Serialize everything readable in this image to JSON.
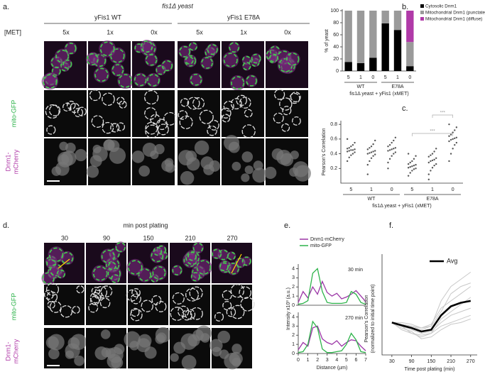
{
  "figure": {
    "panel_a": {
      "letter": "a.",
      "strain": "fis1Δ yeast",
      "wt": "yFis1 WT",
      "mut": "yFis1 E78A",
      "met": "[MET]",
      "doses": [
        "5x",
        "1x",
        "0x",
        "5x",
        "1x",
        "0x"
      ],
      "row_gfp": "mito-GFP",
      "row_cherry": [
        "Dnm1-",
        "mCherry"
      ]
    },
    "panel_d": {
      "letter": "d.",
      "title": "min post plating",
      "times": [
        "30",
        "90",
        "150",
        "210",
        "270"
      ],
      "row_gfp": "mito-GFP",
      "row_cherry": [
        "Dnm1-",
        "mCherry"
      ]
    },
    "letters": {
      "b": "b.",
      "c": "c.",
      "e": "e.",
      "f": "f."
    }
  },
  "chart_data": [
    {
      "type": "bar",
      "stacked": true,
      "ylabel": "% of yeast",
      "xlabel": "fis1Δ yeast + yFis1 (xMET)",
      "categories": [
        "5",
        "1",
        "0",
        "5",
        "1",
        "0"
      ],
      "groups": [
        "WT",
        "E78A"
      ],
      "ylim": [
        0,
        100
      ],
      "yticks": [
        0,
        20,
        40,
        60,
        80,
        100
      ],
      "series": [
        {
          "name": "Cytosolic Dnm1",
          "color": "#000000",
          "values": [
            15,
            13,
            22,
            79,
            68,
            8
          ]
        },
        {
          "name": "Mitochondrial Dnm1 (punctate)",
          "color": "#9a9a9a",
          "values": [
            85,
            87,
            78,
            21,
            32,
            40
          ]
        },
        {
          "name": "Mitochondrial Dnm1 (diffuse)",
          "color": "#b03aa8",
          "values": [
            0,
            0,
            0,
            0,
            0,
            52
          ]
        }
      ]
    },
    {
      "type": "scatter",
      "ylabel": "Pearson's Correlation",
      "xlabel": "fis1Δ yeast + yFis1 (xMET)",
      "categories": [
        "5",
        "1",
        "0",
        "5",
        "1",
        "0"
      ],
      "groups": [
        "WT",
        "E78A"
      ],
      "ylim": [
        0,
        0.85
      ],
      "yticks": [
        0.2,
        0.4,
        0.6,
        0.8
      ],
      "color": "#555555",
      "annotations": [
        "***",
        "***"
      ],
      "values": [
        [
          0.3,
          0.35,
          0.38,
          0.4,
          0.42,
          0.43,
          0.44,
          0.45,
          0.45,
          0.46,
          0.47,
          0.48,
          0.5,
          0.52,
          0.55,
          0.6
        ],
        [
          0.25,
          0.3,
          0.34,
          0.37,
          0.39,
          0.4,
          0.41,
          0.42,
          0.43,
          0.44,
          0.46,
          0.48,
          0.5,
          0.53,
          0.58,
          0.12
        ],
        [
          0.28,
          0.33,
          0.37,
          0.4,
          0.42,
          0.44,
          0.45,
          0.46,
          0.47,
          0.48,
          0.5,
          0.52,
          0.55,
          0.58,
          0.62,
          0.2
        ],
        [
          0.1,
          0.14,
          0.17,
          0.19,
          0.2,
          0.21,
          0.22,
          0.23,
          0.24,
          0.25,
          0.26,
          0.28,
          0.3,
          0.33,
          0.37,
          0.4
        ],
        [
          0.12,
          0.17,
          0.21,
          0.24,
          0.26,
          0.28,
          0.3,
          0.31,
          0.32,
          0.34,
          0.36,
          0.38,
          0.4,
          0.43,
          0.47,
          0.05
        ],
        [
          0.3,
          0.4,
          0.47,
          0.52,
          0.55,
          0.57,
          0.59,
          0.6,
          0.61,
          0.62,
          0.64,
          0.66,
          0.69,
          0.72,
          0.76,
          0.8
        ]
      ]
    },
    {
      "type": "line",
      "ylabel": "Intensity x10³ (a.u.)",
      "xlabel": "Distance (µm)",
      "xlim": [
        0,
        7
      ],
      "xticks": [
        0,
        1,
        2,
        3,
        4,
        5,
        6,
        7
      ],
      "ylim": [
        0,
        4.5
      ],
      "yticks": [
        0,
        1,
        2,
        3,
        4
      ],
      "x": [
        0,
        0.5,
        1,
        1.5,
        2,
        2.5,
        3,
        3.5,
        4,
        4.5,
        5,
        5.5,
        6,
        6.5,
        7
      ],
      "series": [
        {
          "name": "Dnm1-mCherry",
          "color": "#9b35a6"
        },
        {
          "name": "mito-GFP",
          "color": "#2db34a"
        }
      ],
      "panels": [
        {
          "label": "30 min",
          "values": [
            [
              0.3,
              1.5,
              0.8,
              2.0,
              1.2,
              2.6,
              1.4,
              1.0,
              1.3,
              0.7,
              0.9,
              1.2,
              1.6,
              1.0,
              0.4
            ],
            [
              0.1,
              0.2,
              0.5,
              3.5,
              4.0,
              1.5,
              0.3,
              0.2,
              0.2,
              0.2,
              0.3,
              1.5,
              1.2,
              0.3,
              0.1
            ]
          ]
        },
        {
          "label": "270 min",
          "values": [
            [
              0.4,
              1.2,
              0.8,
              2.8,
              3.0,
              1.6,
              1.2,
              1.0,
              1.4,
              0.8,
              1.2,
              1.5,
              1.4,
              0.8,
              0.3
            ],
            [
              0.1,
              0.2,
              1.0,
              3.5,
              2.8,
              0.5,
              0.1,
              0.1,
              0.2,
              0.3,
              1.0,
              2.2,
              1.5,
              0.2,
              0.1
            ]
          ]
        }
      ]
    },
    {
      "type": "line",
      "ylabel": [
        "Pearson's Correlation",
        "(normalized to initial time point)"
      ],
      "xlabel": "Time post plating (min)",
      "xlim": [
        0,
        290
      ],
      "xticks": [
        30,
        90,
        150,
        210,
        270
      ],
      "ylim": [
        0.1,
        2.9
      ],
      "x": [
        30,
        60,
        90,
        120,
        150,
        180,
        210,
        240,
        270
      ],
      "series": [
        {
          "name": "Avg",
          "color": "#000000",
          "values": [
            1,
            0.92,
            0.85,
            0.75,
            0.8,
            1.2,
            1.45,
            1.55,
            1.6
          ]
        }
      ],
      "individual_color": "#c8c8c8",
      "individual": [
        [
          1,
          0.95,
          0.9,
          0.8,
          0.9,
          1.6,
          2.0,
          2.2,
          2.4
        ],
        [
          1,
          0.9,
          0.7,
          0.6,
          0.7,
          1.1,
          1.3,
          1.5,
          1.7
        ],
        [
          1,
          1.0,
          0.95,
          0.85,
          0.9,
          1.3,
          1.8,
          2.0,
          2.1
        ],
        [
          1,
          0.85,
          0.75,
          0.55,
          0.6,
          0.8,
          0.95,
          1.0,
          1.1
        ],
        [
          1,
          0.9,
          0.8,
          0.7,
          0.75,
          1.0,
          1.2,
          1.3,
          1.4
        ],
        [
          1,
          0.95,
          0.9,
          0.85,
          0.95,
          1.4,
          1.6,
          1.8,
          2.0
        ],
        [
          1,
          0.8,
          0.7,
          0.65,
          0.7,
          0.9,
          1.0,
          1.1,
          1.2
        ]
      ]
    }
  ]
}
